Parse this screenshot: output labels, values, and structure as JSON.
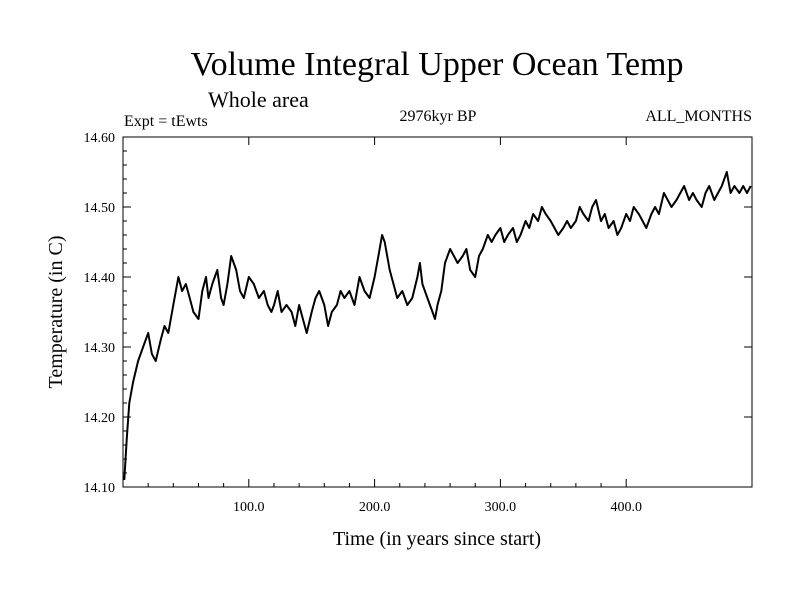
{
  "chart_data": {
    "type": "line",
    "title": "Volume Integral Upper Ocean Temp",
    "subtitle": "Whole area",
    "left_annotation": "Expt = tEwts",
    "center_annotation": "2976kyr BP",
    "right_annotation": "ALL_MONTHS",
    "xlabel": "Time (in years since start)",
    "ylabel": "Temperature (in C)",
    "xlim": [
      0,
      500
    ],
    "ylim": [
      14.1,
      14.6
    ],
    "x_ticks": [
      100,
      200,
      300,
      400
    ],
    "x_tick_labels": [
      "100.0",
      "200.0",
      "300.0",
      "400.0"
    ],
    "y_ticks": [
      14.1,
      14.2,
      14.3,
      14.4,
      14.5,
      14.6
    ],
    "y_tick_labels": [
      "14.10",
      "14.20",
      "14.30",
      "14.40",
      "14.50",
      "14.60"
    ],
    "grid": false,
    "series": [
      {
        "name": "Volume Integral Upper Ocean Temp",
        "x": [
          1,
          3,
          5,
          8,
          12,
          16,
          20,
          23,
          26,
          30,
          33,
          36,
          40,
          44,
          47,
          50,
          53,
          56,
          60,
          63,
          66,
          68,
          71,
          75,
          78,
          80,
          83,
          86,
          90,
          93,
          96,
          100,
          104,
          108,
          112,
          115,
          118,
          120,
          123,
          126,
          130,
          134,
          137,
          140,
          143,
          146,
          150,
          153,
          156,
          160,
          163,
          166,
          170,
          173,
          176,
          180,
          184,
          188,
          192,
          196,
          200,
          203,
          206,
          208,
          210,
          212,
          215,
          218,
          222,
          226,
          230,
          234,
          236,
          238,
          242,
          246,
          248,
          250,
          253,
          256,
          260,
          263,
          266,
          270,
          273,
          276,
          280,
          283,
          286,
          290,
          293,
          296,
          300,
          303,
          306,
          310,
          313,
          316,
          320,
          323,
          326,
          330,
          333,
          336,
          340,
          343,
          346,
          350,
          353,
          356,
          360,
          363,
          366,
          370,
          373,
          376,
          380,
          383,
          386,
          390,
          393,
          396,
          400,
          403,
          406,
          410,
          413,
          416,
          420,
          423,
          426,
          430,
          433,
          436,
          440,
          443,
          446,
          450,
          453,
          456,
          460,
          463,
          466,
          470,
          473,
          476,
          480,
          483,
          486,
          490,
          493,
          496,
          499
        ],
        "y": [
          14.11,
          14.17,
          14.22,
          14.25,
          14.28,
          14.3,
          14.32,
          14.29,
          14.28,
          14.31,
          14.33,
          14.32,
          14.36,
          14.4,
          14.38,
          14.39,
          14.37,
          14.35,
          14.34,
          14.38,
          14.4,
          14.37,
          14.39,
          14.41,
          14.37,
          14.36,
          14.39,
          14.43,
          14.41,
          14.38,
          14.37,
          14.4,
          14.39,
          14.37,
          14.38,
          14.36,
          14.35,
          14.36,
          14.38,
          14.35,
          14.36,
          14.35,
          14.33,
          14.36,
          14.34,
          14.32,
          14.35,
          14.37,
          14.38,
          14.36,
          14.33,
          14.35,
          14.36,
          14.38,
          14.37,
          14.38,
          14.36,
          14.4,
          14.38,
          14.37,
          14.4,
          14.43,
          14.46,
          14.45,
          14.43,
          14.41,
          14.39,
          14.37,
          14.38,
          14.36,
          14.37,
          14.4,
          14.42,
          14.39,
          14.37,
          14.35,
          14.34,
          14.36,
          14.38,
          14.42,
          14.44,
          14.43,
          14.42,
          14.43,
          14.44,
          14.41,
          14.4,
          14.43,
          14.44,
          14.46,
          14.45,
          14.46,
          14.47,
          14.45,
          14.46,
          14.47,
          14.45,
          14.46,
          14.48,
          14.47,
          14.49,
          14.48,
          14.5,
          14.49,
          14.48,
          14.47,
          14.46,
          14.47,
          14.48,
          14.47,
          14.48,
          14.5,
          14.49,
          14.48,
          14.5,
          14.51,
          14.48,
          14.49,
          14.47,
          14.48,
          14.46,
          14.47,
          14.49,
          14.48,
          14.5,
          14.49,
          14.48,
          14.47,
          14.49,
          14.5,
          14.49,
          14.52,
          14.51,
          14.5,
          14.51,
          14.52,
          14.53,
          14.51,
          14.52,
          14.51,
          14.5,
          14.52,
          14.53,
          14.51,
          14.52,
          14.53,
          14.55,
          14.52,
          14.53,
          14.52,
          14.53,
          14.52,
          14.53
        ]
      }
    ]
  }
}
